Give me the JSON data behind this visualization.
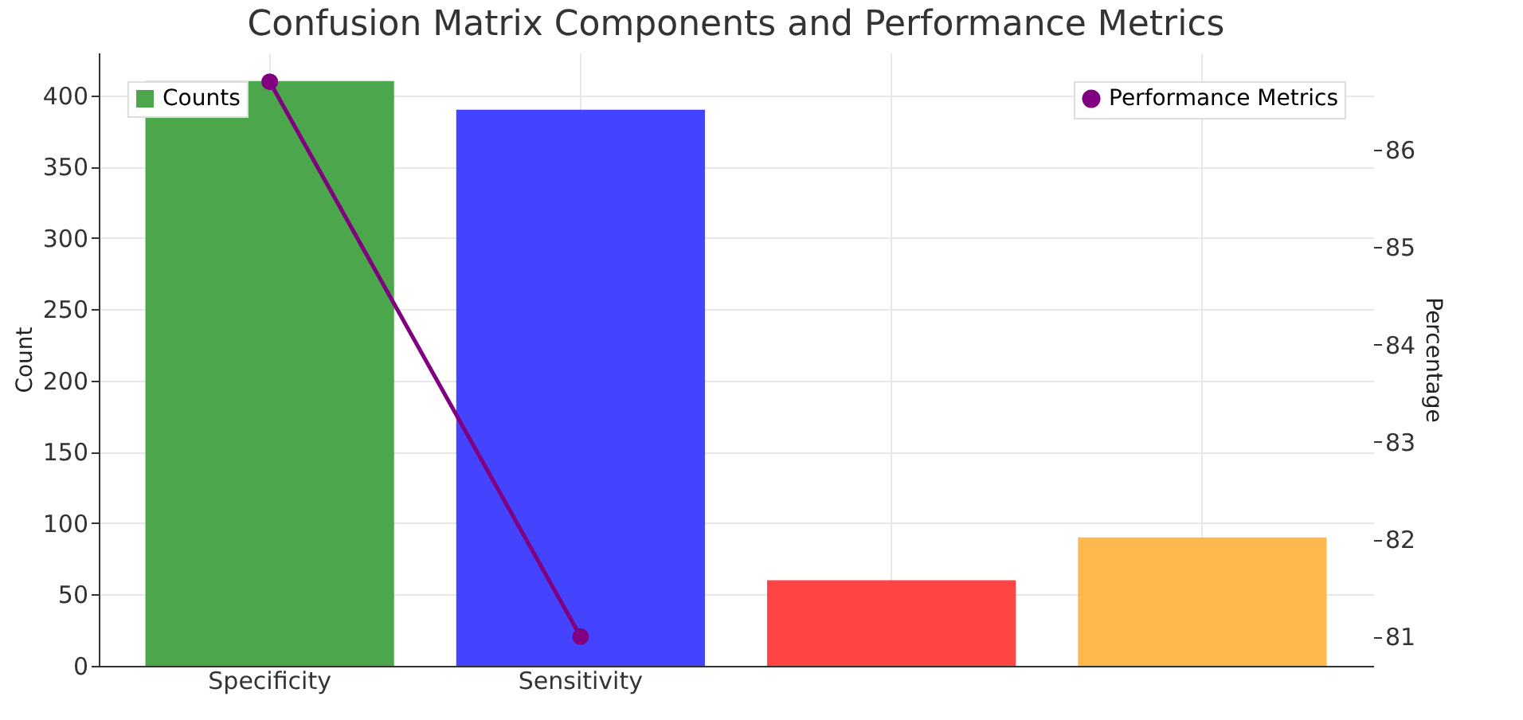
{
  "chart_data": {
    "type": "bar",
    "title": "Confusion Matrix Components and Performance Metrics",
    "ylabel": "Count",
    "y2label": "Percentage",
    "categories": [
      "Specificity",
      "Sensitivity",
      null,
      null
    ],
    "series": [
      {
        "name": "Counts",
        "colors": [
          "#4ca64c",
          "#4444ff",
          "#ff4444",
          "#ffb84d"
        ],
        "values": [
          410,
          390,
          60,
          90
        ]
      },
      {
        "name": "Performance Metrics",
        "type": "line",
        "axis": "y2",
        "color": "#800080",
        "x": [
          "Specificity",
          "Sensitivity"
        ],
        "values": [
          86.7,
          81.0
        ]
      }
    ],
    "ylim": [
      0,
      430
    ],
    "yticks": [
      0,
      50,
      100,
      150,
      200,
      250,
      300,
      350,
      400
    ],
    "y2lim": [
      80.7,
      87.0
    ],
    "y2ticks": [
      81,
      82,
      83,
      84,
      85,
      86
    ],
    "grid": true,
    "legend": "top",
    "marker": "circle",
    "line_style": "solid"
  }
}
